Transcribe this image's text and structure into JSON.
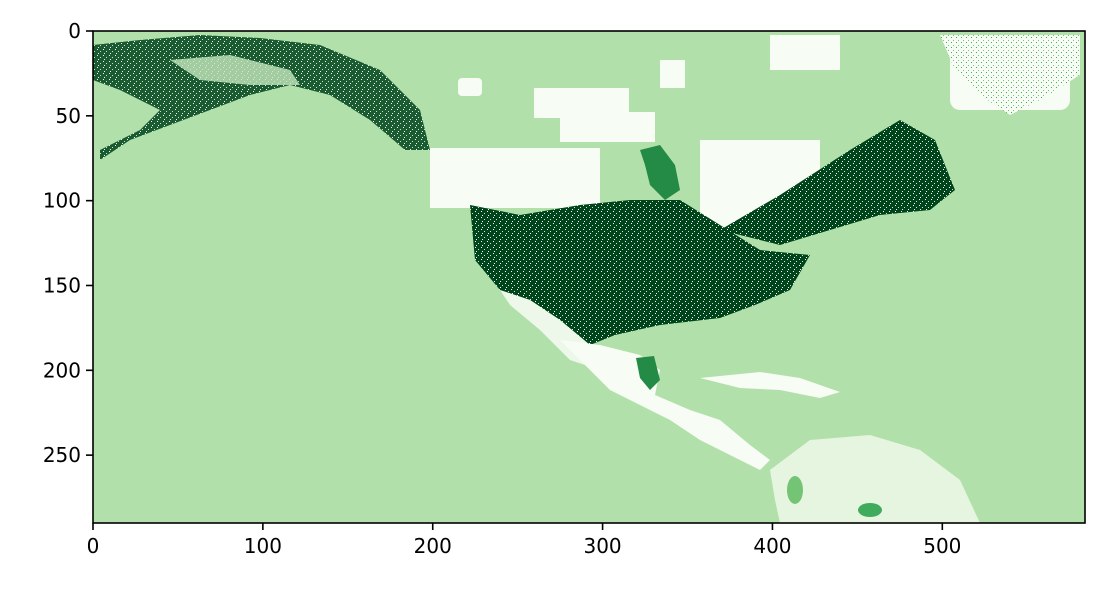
{
  "chart_data": {
    "type": "heatmap",
    "title": "",
    "xlabel": "",
    "ylabel": "",
    "xlim": [
      0,
      584
    ],
    "ylim": [
      290,
      0
    ],
    "x_ticks": [
      0,
      100,
      200,
      300,
      400,
      500
    ],
    "y_ticks": [
      0,
      50,
      100,
      150,
      200,
      250
    ],
    "colormap": "Greens",
    "grid": false,
    "legend": "none",
    "colors": {
      "background": "#b2e0ab",
      "very_light": "#f7fcf5",
      "light": "#e5f5e0",
      "mid_light": "#c7e9c0",
      "medium": "#74c476",
      "medium_dark": "#41ab5d",
      "dark": "#238b45",
      "very_dark": "#00441b"
    }
  }
}
